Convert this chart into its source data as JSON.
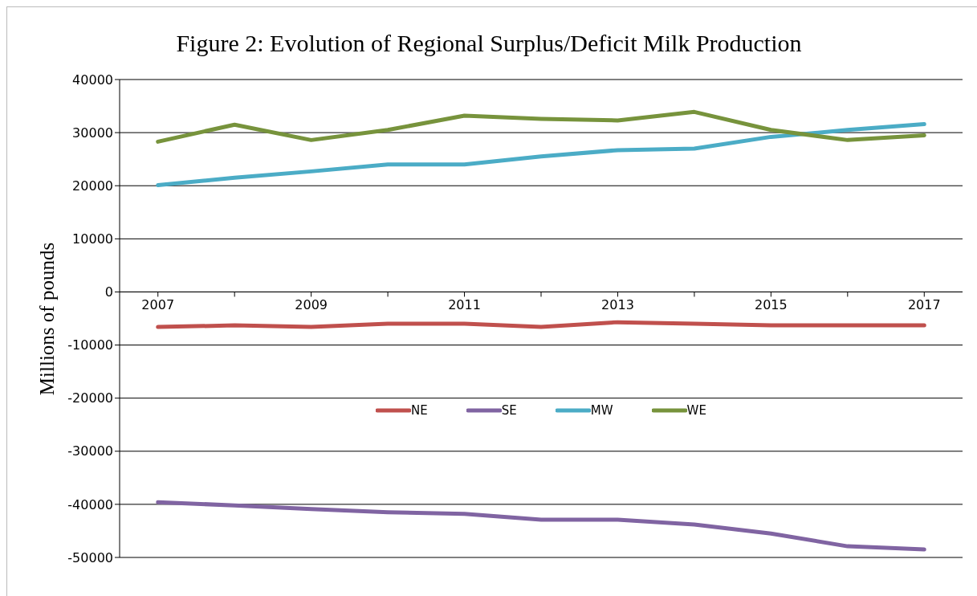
{
  "chart_data": {
    "type": "line",
    "title": "Figure 2: Evolution of Regional Surplus/Deficit Milk Production",
    "ylabel": "Millions of pounds",
    "x": [
      2007,
      2008,
      2009,
      2010,
      2011,
      2012,
      2013,
      2014,
      2015,
      2016,
      2017
    ],
    "series": [
      {
        "name": "NE",
        "color": "#c0504d",
        "values": [
          -6600,
          -6300,
          -6600,
          -6000,
          -6000,
          -6600,
          -5700,
          -6000,
          -6300,
          -6300,
          -6300
        ]
      },
      {
        "name": "SE",
        "color": "#8064a2",
        "values": [
          -39600,
          -40200,
          -40900,
          -41500,
          -41800,
          -42900,
          -42900,
          -43800,
          -45500,
          -47900,
          -48500
        ]
      },
      {
        "name": "MW",
        "color": "#4bacc6",
        "values": [
          20100,
          21500,
          22700,
          24000,
          24000,
          25500,
          26700,
          27000,
          29200,
          30500,
          31600
        ]
      },
      {
        "name": "WE",
        "color": "#77933c",
        "values": [
          28300,
          31500,
          28600,
          30500,
          33200,
          32600,
          32300,
          33900,
          30500,
          28600,
          29500
        ]
      }
    ],
    "xlim": [
      2006.5,
      2017.5
    ],
    "xticks": [
      2007,
      {
        "value": 2008,
        "label": null
      },
      2009,
      {
        "value": 2010,
        "label": null
      },
      2011,
      {
        "value": 2012,
        "label": null
      },
      2013,
      {
        "value": 2014,
        "label": null
      },
      2015,
      {
        "value": 2016,
        "label": null
      },
      2017
    ],
    "ylim": [
      -50000,
      40000
    ],
    "yticks": [
      -50000,
      -40000,
      -30000,
      -20000,
      -10000,
      0,
      10000,
      20000,
      30000,
      40000
    ],
    "grid": "y",
    "legend": "bottom",
    "marker": "none",
    "line_style": "solid"
  }
}
